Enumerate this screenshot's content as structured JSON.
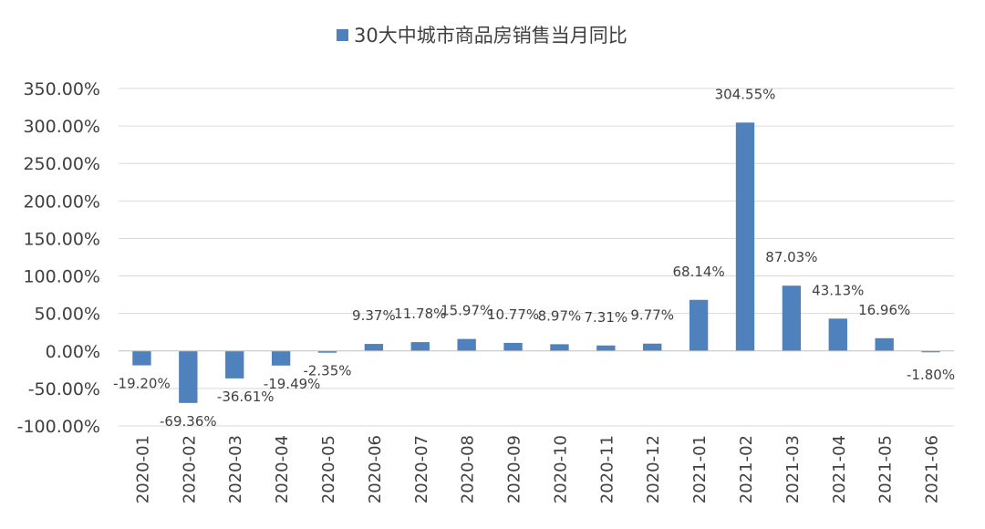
{
  "chart_data": {
    "type": "bar",
    "title": "",
    "xlabel": "",
    "ylabel": "",
    "legend": {
      "position": "top-center",
      "entries": [
        "30大中城市商品房销售当月同比"
      ]
    },
    "grid": true,
    "ylim": [
      -100,
      350
    ],
    "yticks": [
      {
        "value": 350,
        "label": "350.00%"
      },
      {
        "value": 300,
        "label": "300.00%"
      },
      {
        "value": 250,
        "label": "250.00%"
      },
      {
        "value": 200,
        "label": "200.00%"
      },
      {
        "value": 150,
        "label": "150.00%"
      },
      {
        "value": 100,
        "label": "100.00%"
      },
      {
        "value": 50,
        "label": "50.00%"
      },
      {
        "value": 0,
        "label": "0.00%"
      },
      {
        "value": -50,
        "label": "-50.00%"
      },
      {
        "value": -100,
        "label": "-100.00%"
      }
    ],
    "categories": [
      "2020-01",
      "2020-02",
      "2020-03",
      "2020-04",
      "2020-05",
      "2020-06",
      "2020-07",
      "2020-08",
      "2020-09",
      "2020-10",
      "2020-11",
      "2020-12",
      "2021-01",
      "2021-02",
      "2021-03",
      "2021-04",
      "2021-05",
      "2021-06"
    ],
    "series": [
      {
        "name": "30大中城市商品房销售当月同比",
        "color": "#4f81bd",
        "values": [
          -19.2,
          -69.36,
          -36.61,
          -19.49,
          -2.35,
          9.37,
          11.78,
          15.97,
          10.77,
          8.97,
          7.31,
          9.77,
          68.14,
          304.55,
          87.03,
          43.13,
          16.96,
          -1.8
        ],
        "labels": [
          "-19.20%",
          "-69.36%",
          "-36.61%",
          "-19.49%",
          "-2.35%",
          "9.37%",
          "11.78%",
          "15.97%",
          "10.77%",
          "8.97%",
          "7.31%",
          "9.77%",
          "68.14%",
          "304.55%",
          "87.03%",
          "43.13%",
          "16.96%",
          "-1.80%"
        ]
      }
    ]
  }
}
